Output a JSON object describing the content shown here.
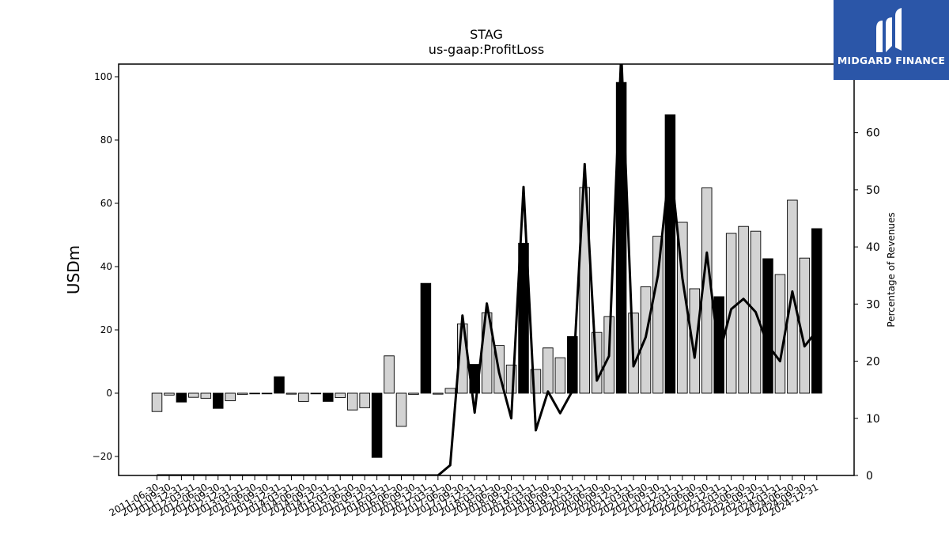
{
  "chart_data": {
    "type": "bar",
    "title": "STAG",
    "subtitle": "us-gaap:ProfitLoss",
    "ylabel": "USDm",
    "y2label": "Percentage of Revenues",
    "ylim": [
      -26,
      104
    ],
    "y2lim": [
      0,
      72
    ],
    "yticks": [
      -20,
      0,
      20,
      40,
      60,
      80,
      100
    ],
    "y2ticks": [
      0,
      10,
      20,
      30,
      40,
      50,
      60
    ],
    "categories": [
      "2011-06-30",
      "2011-09-30",
      "2011-12-31",
      "2012-03-31",
      "2012-06-30",
      "2012-09-30",
      "2012-12-31",
      "2013-03-31",
      "2013-06-30",
      "2013-09-30",
      "2013-12-31",
      "2014-03-31",
      "2014-06-30",
      "2014-09-30",
      "2014-12-31",
      "2015-03-31",
      "2015-06-30",
      "2015-09-30",
      "2015-12-31",
      "2016-03-31",
      "2016-06-30",
      "2016-09-30",
      "2016-12-31",
      "2017-03-31",
      "2017-06-30",
      "2017-09-30",
      "2017-12-31",
      "2018-03-31",
      "2018-06-30",
      "2018-09-30",
      "2018-12-31",
      "2019-03-31",
      "2019-06-30",
      "2019-09-30",
      "2019-12-31",
      "2020-03-31",
      "2020-06-30",
      "2020-09-30",
      "2020-12-31",
      "2021-03-31",
      "2021-06-30",
      "2021-09-30",
      "2021-12-31",
      "2022-03-31",
      "2022-06-30",
      "2022-09-30",
      "2022-12-31",
      "2023-03-31",
      "2023-06-30",
      "2023-09-30",
      "2023-12-31",
      "2024-03-31",
      "2024-06-30",
      "2024-09-30",
      "2024-12-31"
    ],
    "series": [
      {
        "kind": "bar",
        "axis": "left",
        "values": [
          -5.8,
          -0.6,
          -2.8,
          -1.3,
          -1.6,
          -4.8,
          -2.4,
          -0.4,
          -0.2,
          -0.2,
          5.2,
          -0.3,
          -2.6,
          -0.2,
          -2.6,
          -1.4,
          -5.3,
          -4.6,
          -20.3,
          11.8,
          -10.5,
          -0.4,
          34.7,
          -0.3,
          1.5,
          21.9,
          9.1,
          25.4,
          15.1,
          8.9,
          47.4,
          7.5,
          14.3,
          11.2,
          17.9,
          65.0,
          19.2,
          24.2,
          98.2,
          25.3,
          33.6,
          49.6,
          88.0,
          54.0,
          33.0,
          64.9,
          30.5,
          50.5,
          52.7,
          51.2,
          42.5,
          37.5,
          61.0,
          42.7,
          52.0
        ],
        "highlight": [
          false,
          false,
          true,
          false,
          false,
          true,
          false,
          false,
          false,
          false,
          true,
          false,
          false,
          false,
          true,
          false,
          false,
          false,
          true,
          false,
          false,
          false,
          true,
          false,
          false,
          false,
          true,
          false,
          false,
          false,
          true,
          false,
          false,
          false,
          true,
          false,
          false,
          false,
          true,
          false,
          false,
          false,
          true,
          false,
          false,
          false,
          true,
          false,
          false,
          false,
          true,
          false,
          false,
          false,
          true
        ]
      },
      {
        "kind": "line",
        "axis": "right",
        "values": [
          0,
          0,
          0,
          0,
          0,
          0,
          0,
          0,
          0,
          0,
          0,
          0,
          0,
          0,
          0,
          0,
          0,
          0,
          0,
          0,
          0,
          0,
          0,
          0,
          1.8,
          28.0,
          11.0,
          30.1,
          18.0,
          10.0,
          50.5,
          7.9,
          14.7,
          10.9,
          14.8,
          54.5,
          16.6,
          20.9,
          74.0,
          19.1,
          24.2,
          35.0,
          55.2,
          34.5,
          20.6,
          39.0,
          21.0,
          29.1,
          30.9,
          28.6,
          22.8,
          20.0,
          32.2,
          22.6,
          25.3
        ]
      }
    ],
    "colors": {
      "bar_default": "#d3d3d3",
      "bar_highlight": "#000000",
      "line": "#000000"
    }
  },
  "logo": {
    "text": "MIDGARD FINANCE"
  }
}
